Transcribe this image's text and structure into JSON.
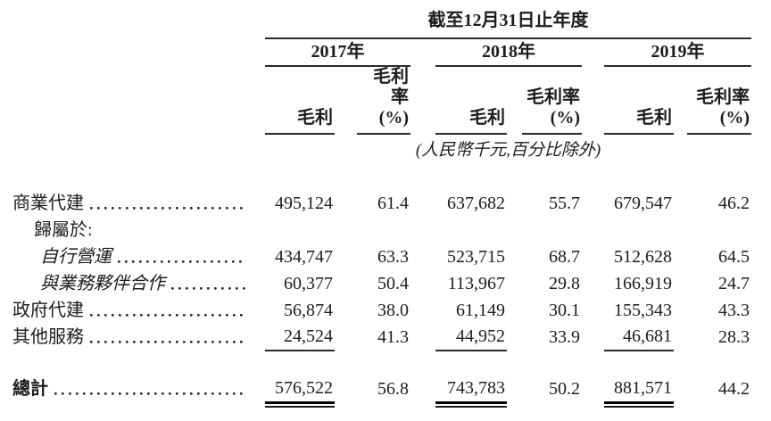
{
  "table": {
    "title": "截至12月31日止年度",
    "note": "(人民幣千元,百分比除外)",
    "year_groups": [
      {
        "label": "2017年"
      },
      {
        "label": "2018年"
      },
      {
        "label": "2019年"
      }
    ],
    "col_headers": {
      "gross_profit": "毛利",
      "margin_line1": "毛利率",
      "margin_line2": "(%)"
    },
    "rows": [
      {
        "label": "商業代建",
        "values": [
          "495,124",
          "61.4",
          "637,682",
          "55.7",
          "679,547",
          "46.2"
        ]
      },
      {
        "label": "歸屬於:",
        "values": [
          "",
          "",
          "",
          "",
          "",
          ""
        ]
      },
      {
        "label": "自行營運",
        "values": [
          "434,747",
          "63.3",
          "523,715",
          "68.7",
          "512,628",
          "64.5"
        ]
      },
      {
        "label": "與業務夥伴合作",
        "values": [
          "60,377",
          "50.4",
          "113,967",
          "29.8",
          "166,919",
          "24.7"
        ]
      },
      {
        "label": "政府代建",
        "values": [
          "56,874",
          "38.0",
          "61,149",
          "30.1",
          "155,343",
          "43.3"
        ]
      },
      {
        "label": "其他服務",
        "values": [
          "24,524",
          "41.3",
          "44,952",
          "33.9",
          "46,681",
          "28.3"
        ]
      }
    ],
    "total_row": {
      "label": "總計",
      "values": [
        "576,522",
        "56.8",
        "743,783",
        "50.2",
        "881,571",
        "44.2"
      ]
    }
  }
}
